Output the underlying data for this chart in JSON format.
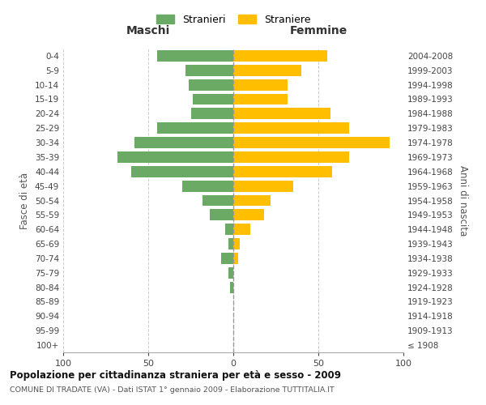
{
  "age_groups": [
    "100+",
    "95-99",
    "90-94",
    "85-89",
    "80-84",
    "75-79",
    "70-74",
    "65-69",
    "60-64",
    "55-59",
    "50-54",
    "45-49",
    "40-44",
    "35-39",
    "30-34",
    "25-29",
    "20-24",
    "15-19",
    "10-14",
    "5-9",
    "0-4"
  ],
  "birth_years": [
    "≤ 1908",
    "1909-1913",
    "1914-1918",
    "1919-1923",
    "1924-1928",
    "1929-1933",
    "1934-1938",
    "1939-1943",
    "1944-1948",
    "1949-1953",
    "1954-1958",
    "1959-1963",
    "1964-1968",
    "1969-1973",
    "1974-1978",
    "1979-1983",
    "1984-1988",
    "1989-1993",
    "1994-1998",
    "1999-2003",
    "2004-2008"
  ],
  "maschi": [
    0,
    0,
    0,
    0,
    2,
    3,
    7,
    3,
    5,
    14,
    18,
    30,
    60,
    68,
    58,
    45,
    25,
    24,
    26,
    28,
    45
  ],
  "femmine": [
    0,
    0,
    0,
    0,
    0,
    0,
    3,
    4,
    10,
    18,
    22,
    35,
    58,
    68,
    92,
    68,
    57,
    32,
    32,
    40,
    55
  ],
  "maschi_color": "#6aaa64",
  "femmine_color": "#ffbf00",
  "title": "Popolazione per cittadinanza straniera per età e sesso - 2009",
  "subtitle": "COMUNE DI TRADATE (VA) - Dati ISTAT 1° gennaio 2009 - Elaborazione TUTTITALIA.IT",
  "xlabel_left": "Maschi",
  "xlabel_right": "Femmine",
  "ylabel_left": "Fasce di età",
  "ylabel_right": "Anni di nascita",
  "legend_maschi": "Stranieri",
  "legend_femmine": "Straniere",
  "xlim": 100,
  "background_color": "#ffffff",
  "grid_color": "#cccccc"
}
